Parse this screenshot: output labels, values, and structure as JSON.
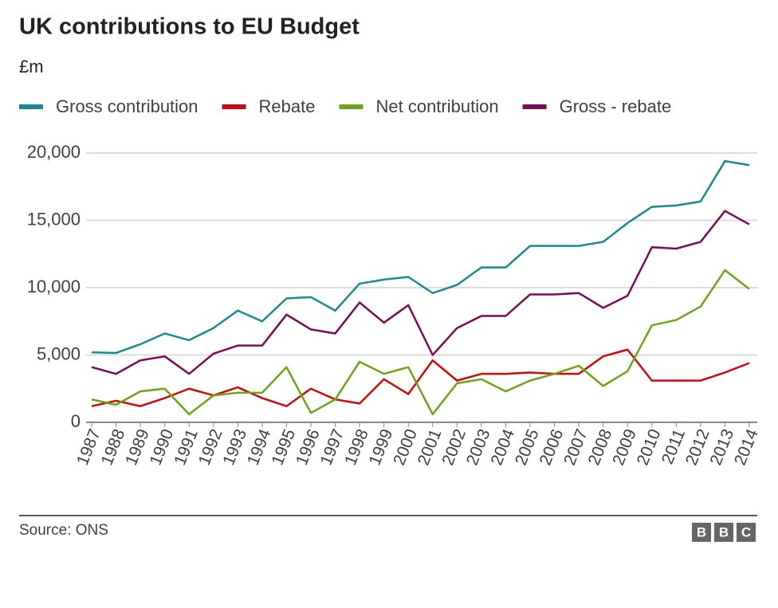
{
  "chart_data": {
    "type": "line",
    "title": "UK contributions to EU Budget",
    "subtitle": "£m",
    "categories": [
      "1987",
      "1988",
      "1989",
      "1990",
      "1991",
      "1992",
      "1993",
      "1994",
      "1995",
      "1996",
      "1997",
      "1998",
      "1999",
      "2000",
      "2001",
      "2002",
      "2003",
      "2004",
      "2005",
      "2006",
      "2007",
      "2008",
      "2009",
      "2010",
      "2011",
      "2012",
      "2013",
      "2014"
    ],
    "series": [
      {
        "name": "Gross contribution",
        "color": "#1a8a8f",
        "values": [
          5200,
          5150,
          5800,
          6600,
          6100,
          7000,
          8300,
          7500,
          9200,
          9300,
          8300,
          10300,
          10600,
          10800,
          9600,
          10200,
          11500,
          11500,
          13100,
          13100,
          13100,
          13400,
          14800,
          16000,
          16100,
          16400,
          19400,
          19100
        ]
      },
      {
        "name": "Rebate",
        "color": "#cc0a0a",
        "values": [
          1200,
          1600,
          1200,
          1800,
          2500,
          2000,
          2600,
          1800,
          1200,
          2500,
          1700,
          1400,
          3200,
          2100,
          4600,
          3100,
          3600,
          3600,
          3700,
          3600,
          3600,
          4900,
          5400,
          3100,
          3100,
          3100,
          3700,
          4400
        ]
      },
      {
        "name": "Net contribution",
        "color": "#6da317",
        "values": [
          1700,
          1300,
          2300,
          2500,
          600,
          2000,
          2200,
          2200,
          4100,
          700,
          1700,
          4500,
          3600,
          4100,
          600,
          2900,
          3200,
          2300,
          3100,
          3600,
          4200,
          2700,
          3800,
          7200,
          7600,
          8600,
          11300,
          9900
        ]
      },
      {
        "name": "Gross - rebate",
        "color": "#7a0a5a",
        "values": [
          4100,
          3600,
          4600,
          4900,
          3600,
          5100,
          5700,
          5700,
          8000,
          6900,
          6600,
          8900,
          7400,
          8700,
          5000,
          7000,
          7900,
          7900,
          9500,
          9500,
          9600,
          8500,
          9400,
          13000,
          12900,
          13400,
          15700,
          14700
        ]
      }
    ],
    "ylim": [
      0,
      20000
    ],
    "yticks": [
      0,
      {
        "value": 5000,
        "label": "5,000"
      },
      {
        "value": 10000,
        "label": "10,000"
      },
      {
        "value": 15000,
        "label": "15,000"
      },
      {
        "value": 20000,
        "label": "20,000"
      }
    ],
    "grid": true,
    "source": "Source: ONS",
    "logo": [
      "B",
      "B",
      "C"
    ]
  }
}
